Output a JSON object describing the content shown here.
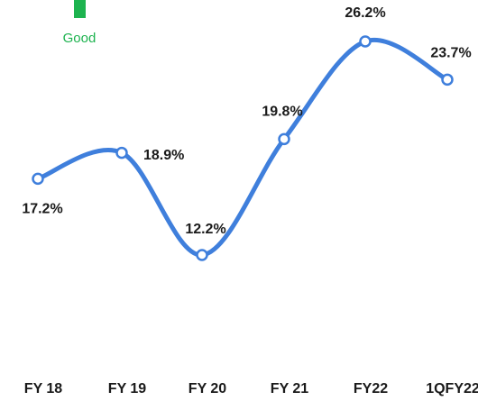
{
  "chart_data": {
    "type": "line",
    "legend_items": [
      {
        "label": "Good",
        "color": "#1db34f"
      }
    ],
    "categories": [
      "FY 18",
      "FY 19",
      "FY 20",
      "FY 21",
      "FY22",
      "1QFY22"
    ],
    "series": [
      {
        "color": "#3f7fdc",
        "values": [
          17.2,
          18.9,
          12.2,
          19.8,
          26.2,
          23.7
        ],
        "value_labels": [
          "17.2%",
          "18.9%",
          "12.2%",
          "19.8%",
          "26.2%",
          "23.7%"
        ]
      }
    ],
    "smooth": true,
    "markers": true
  }
}
